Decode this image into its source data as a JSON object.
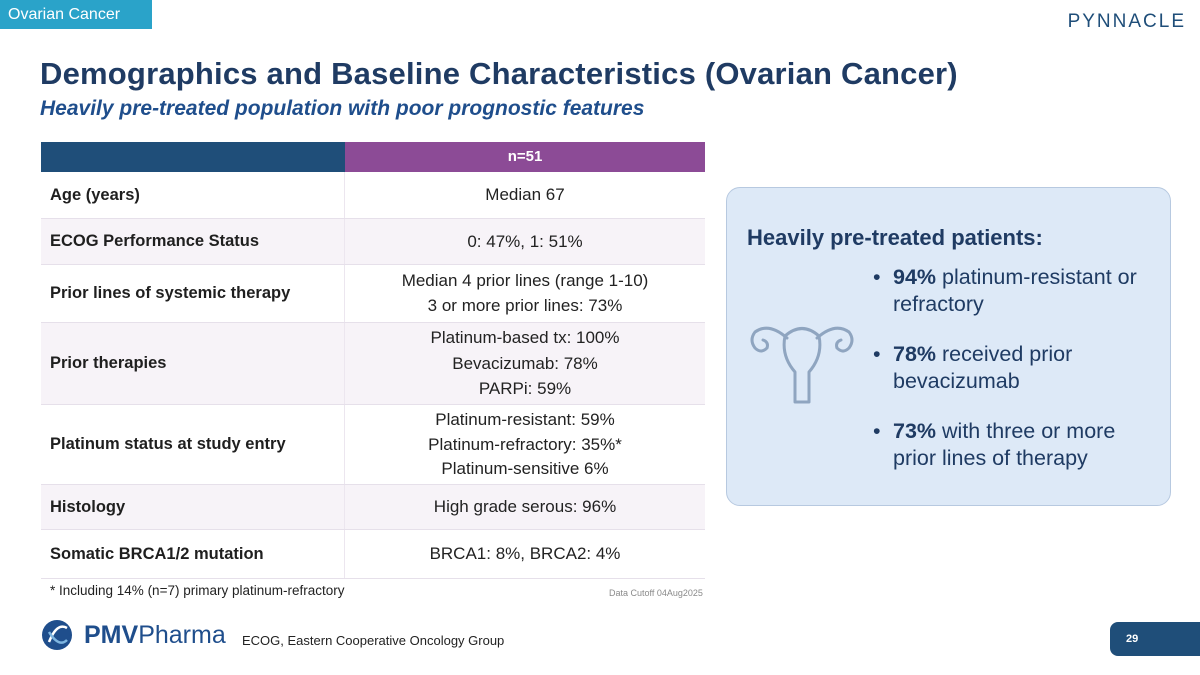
{
  "header": {
    "section_tag": "Ovarian Cancer",
    "brand": "PYNNACLE",
    "title": "Demographics and Baseline Characteristics (Ovarian Cancer)",
    "subtitle": "Heavily pre-treated population with poor prognostic features"
  },
  "table": {
    "column_header": "n=51",
    "rows": [
      {
        "label": "Age (years)",
        "values": [
          "Median 67"
        ]
      },
      {
        "label": "ECOG Performance Status",
        "values": [
          "0: 47%, 1: 51%"
        ]
      },
      {
        "label": "Prior lines of systemic therapy",
        "values": [
          "Median 4 prior lines (range 1-10)",
          "3 or more prior lines: 73%"
        ]
      },
      {
        "label": "Prior therapies",
        "values": [
          "Platinum-based tx: 100%",
          "Bevacizumab: 78%",
          "PARPi: 59%"
        ]
      },
      {
        "label": "Platinum status at study entry",
        "values": [
          "Platinum-resistant: 59%",
          "Platinum-refractory: 35%*",
          "Platinum-sensitive 6%"
        ]
      },
      {
        "label": "Histology",
        "values": [
          "High grade serous: 96%"
        ]
      },
      {
        "label": "Somatic BRCA1/2 mutation",
        "values": [
          "BRCA1: 8%, BRCA2: 4%"
        ]
      }
    ],
    "footnote": "* Including 14% (n=7) primary platinum-refractory",
    "cutoff": "Data Cutoff 04Aug2025"
  },
  "callout": {
    "title": "Heavily pre-treated patients:",
    "icon": "uterus-icon",
    "bullets": [
      {
        "bold": "94%",
        "text": " platinum-resistant or refractory"
      },
      {
        "bold": "78%",
        "text": " received prior bevacizumab"
      },
      {
        "bold": "73%",
        "text": " with three or more prior lines of therapy"
      }
    ]
  },
  "footer": {
    "logo_bold": "PMV",
    "logo_rest": "Pharma",
    "abbreviation": "ECOG, Eastern Cooperative Oncology Group",
    "page_number": "29"
  },
  "colors": {
    "navy": "#1f4e79",
    "purple": "#8c4b96",
    "accent_blue": "#2aa3c9",
    "callout_bg": "#dde9f7"
  }
}
